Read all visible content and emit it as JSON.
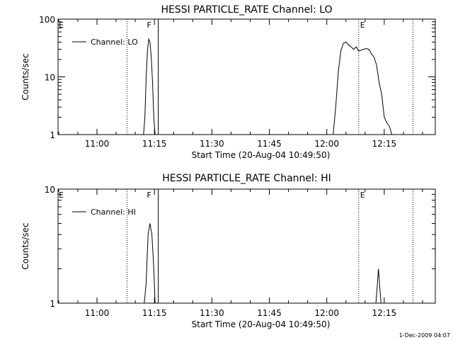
{
  "chart_data": [
    {
      "type": "line",
      "title": "HESSI PARTICLE_RATE Channel: LO",
      "xlabel": "Start Time (20-Aug-04 10:49:50)",
      "ylabel": "Counts/sec",
      "y_scale": "log",
      "ylim": [
        1,
        100
      ],
      "xlim": [
        "10:49:50",
        "12:28:20"
      ],
      "x_ticks": [
        "11:00",
        "11:15",
        "11:30",
        "11:45",
        "12:00",
        "12:15"
      ],
      "y_ticks": [
        "1",
        "10",
        "100"
      ],
      "legend": {
        "position": "top-left",
        "entries": [
          "Channel: LO"
        ]
      },
      "markers": [
        {
          "label": "E",
          "time": "10:49:50",
          "style": "none"
        },
        {
          "label": "",
          "time": "11:07:50",
          "style": "dotted"
        },
        {
          "label": "F",
          "time": "11:12:50",
          "style": "none"
        },
        {
          "label": "",
          "time": "11:16:00",
          "style": "solid"
        },
        {
          "label": "E",
          "time": "12:08:20",
          "style": "dotted"
        },
        {
          "label": "",
          "time": "12:22:30",
          "style": "dotted"
        }
      ],
      "series": [
        {
          "name": "Channel: LO",
          "segments": [
            {
              "x": [
                "11:12:10",
                "11:12:30",
                "11:12:50",
                "11:13:10",
                "11:13:30",
                "11:13:50",
                "11:14:10",
                "11:14:30",
                "11:14:50",
                "11:15:10"
              ],
              "y": [
                1,
                2,
                10,
                28,
                45,
                40,
                22,
                8,
                2,
                1
              ]
            },
            {
              "x": [
                "12:01:40",
                "12:02:20",
                "12:03:00",
                "12:03:40",
                "12:04:20",
                "12:05:00",
                "12:05:40",
                "12:06:20",
                "12:07:00",
                "12:07:40",
                "12:08:20",
                "12:09:00",
                "12:09:40",
                "12:10:20",
                "12:11:00",
                "12:11:40",
                "12:12:20",
                "12:13:00",
                "12:13:40",
                "12:14:20",
                "12:15:00",
                "12:15:40",
                "12:16:20",
                "12:17:00"
              ],
              "y": [
                1,
                3,
                12,
                28,
                38,
                40,
                36,
                33,
                30,
                33,
                28,
                29,
                30,
                31,
                30,
                25,
                22,
                16,
                8,
                5,
                2,
                1.6,
                1.4,
                1
              ]
            }
          ]
        }
      ]
    },
    {
      "type": "line",
      "title": "HESSI PARTICLE_RATE Channel: HI",
      "xlabel": "Start Time (20-Aug-04 10:49:50)",
      "ylabel": "Counts/sec",
      "y_scale": "log",
      "ylim": [
        1,
        10
      ],
      "xlim": [
        "10:49:50",
        "12:28:20"
      ],
      "x_ticks": [
        "11:00",
        "11:15",
        "11:30",
        "11:45",
        "12:00",
        "12:15"
      ],
      "y_ticks": [
        "1",
        "10"
      ],
      "legend": {
        "position": "top-left",
        "entries": [
          "Channel: HI"
        ]
      },
      "markers": [
        {
          "label": "E",
          "time": "10:49:50",
          "style": "none"
        },
        {
          "label": "",
          "time": "11:07:50",
          "style": "dotted"
        },
        {
          "label": "F",
          "time": "11:12:50",
          "style": "none"
        },
        {
          "label": "",
          "time": "11:16:00",
          "style": "solid"
        },
        {
          "label": "E",
          "time": "12:08:20",
          "style": "dotted"
        },
        {
          "label": "",
          "time": "12:22:30",
          "style": "dotted"
        }
      ],
      "series": [
        {
          "name": "Channel: HI",
          "segments": [
            {
              "x": [
                "11:12:20",
                "11:12:50",
                "11:13:20",
                "11:13:50",
                "11:14:20",
                "11:14:50",
                "11:15:10"
              ],
              "y": [
                1,
                1.5,
                4,
                5,
                4,
                2,
                1
              ]
            },
            {
              "x": [
                "12:12:50",
                "12:13:10",
                "12:13:30",
                "12:13:50",
                "12:14:10"
              ],
              "y": [
                1,
                1.4,
                2,
                1.4,
                1
              ]
            }
          ]
        }
      ]
    }
  ],
  "footer": {
    "timestamp": "1-Dec-2009 04:07"
  }
}
